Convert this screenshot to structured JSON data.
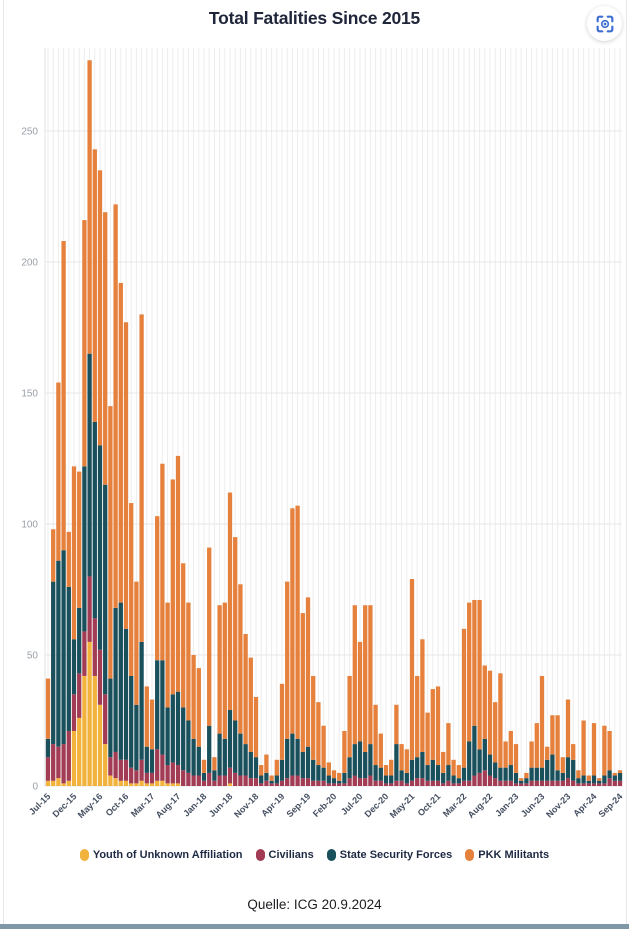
{
  "title": "Total Fatalities Since 2015",
  "source": "Quelle: ICG 20.9.2024",
  "toolbar": {
    "focus_button_icon": "focus-scan-icon",
    "focus_button_color": "#3e6fd0"
  },
  "colors": {
    "background": "#ffffff",
    "grid": "#ececec",
    "axis_text": "#9aa0a8",
    "tick_text": "#454e60",
    "title_text": "#20263a",
    "legend_text": "#1e2a44",
    "accent_blue": "#3e6fd0",
    "bottom_band": "#7e98a8"
  },
  "chart_data": {
    "type": "bar",
    "stacked": true,
    "title": "Total Fatalities Since 2015",
    "xlabel": "",
    "ylabel": "",
    "ylim": [
      0,
      285
    ],
    "yticks": [
      0,
      50,
      100,
      150,
      200,
      250
    ],
    "grid": true,
    "legend_position": "bottom",
    "x_tick_labels": [
      "Jul-15",
      "Dec-15",
      "May-16",
      "Oct-16",
      "Mar-17",
      "Aug-17",
      "Jan-18",
      "Jun-18",
      "Nov-18",
      "Apr-19",
      "Sep-19",
      "Feb-20",
      "Jul-20",
      "Dec-20",
      "May-21",
      "Oct-21",
      "Mar-22",
      "Aug-22",
      "Jan-23",
      "Jun-23",
      "Nov-23",
      "Apr-24",
      "Sep-24"
    ],
    "categories": [
      "Jul-15",
      "Aug-15",
      "Sep-15",
      "Oct-15",
      "Nov-15",
      "Dec-15",
      "Jan-16",
      "Feb-16",
      "Mar-16",
      "Apr-16",
      "May-16",
      "Jun-16",
      "Jul-16",
      "Aug-16",
      "Sep-16",
      "Oct-16",
      "Nov-16",
      "Dec-16",
      "Jan-17",
      "Feb-17",
      "Mar-17",
      "Apr-17",
      "May-17",
      "Jun-17",
      "Jul-17",
      "Aug-17",
      "Sep-17",
      "Oct-17",
      "Nov-17",
      "Dec-17",
      "Jan-18",
      "Feb-18",
      "Mar-18",
      "Apr-18",
      "May-18",
      "Jun-18",
      "Jul-18",
      "Aug-18",
      "Sep-18",
      "Oct-18",
      "Nov-18",
      "Dec-18",
      "Jan-19",
      "Feb-19",
      "Mar-19",
      "Apr-19",
      "May-19",
      "Jun-19",
      "Jul-19",
      "Aug-19",
      "Sep-19",
      "Oct-19",
      "Nov-19",
      "Dec-19",
      "Jan-20",
      "Feb-20",
      "Mar-20",
      "Apr-20",
      "May-20",
      "Jun-20",
      "Jul-20",
      "Aug-20",
      "Sep-20",
      "Oct-20",
      "Nov-20",
      "Dec-20",
      "Jan-21",
      "Feb-21",
      "Mar-21",
      "Apr-21",
      "May-21",
      "Jun-21",
      "Jul-21",
      "Aug-21",
      "Sep-21",
      "Oct-21",
      "Nov-21",
      "Dec-21",
      "Jan-22",
      "Feb-22",
      "Mar-22",
      "Apr-22",
      "May-22",
      "Jun-22",
      "Jul-22",
      "Aug-22",
      "Sep-22",
      "Oct-22",
      "Nov-22",
      "Dec-22",
      "Jan-23",
      "Feb-23",
      "Mar-23",
      "Apr-23",
      "May-23",
      "Jun-23",
      "Jul-23",
      "Aug-23",
      "Sep-23",
      "Oct-23",
      "Nov-23",
      "Dec-23",
      "Jan-24",
      "Feb-24",
      "Mar-24",
      "Apr-24",
      "May-24",
      "Jun-24",
      "Jul-24",
      "Aug-24",
      "Sep-24"
    ],
    "series": [
      {
        "name": "Youth of Unknown Affiliation",
        "color": "#F2B33D",
        "values": [
          2,
          2,
          3,
          1,
          2,
          21,
          26,
          42,
          55,
          42,
          31,
          16,
          4,
          3,
          2,
          2,
          1,
          1,
          2,
          1,
          1,
          2,
          2,
          1,
          1,
          1,
          0,
          0,
          0,
          0,
          0,
          0,
          0,
          0,
          0,
          1,
          0,
          0,
          0,
          0,
          0,
          0,
          0,
          0,
          0,
          0,
          0,
          0,
          0,
          0,
          0,
          0,
          0,
          0,
          0,
          0,
          0,
          0,
          0,
          0,
          0,
          0,
          0,
          0,
          0,
          0,
          0,
          0,
          0,
          0,
          0,
          0,
          0,
          0,
          0,
          0,
          0,
          0,
          0,
          0,
          0,
          0,
          0,
          0,
          0,
          0,
          0,
          0,
          0,
          0,
          0,
          0,
          0,
          0,
          0,
          0,
          0,
          0,
          0,
          0,
          0,
          0,
          0,
          0,
          0,
          0,
          0,
          0,
          0,
          0,
          0
        ]
      },
      {
        "name": "Civilians",
        "color": "#A23C55",
        "values": [
          9,
          14,
          12,
          15,
          19,
          14,
          17,
          17,
          25,
          22,
          21,
          19,
          7,
          10,
          8,
          8,
          6,
          5,
          8,
          4,
          4,
          12,
          10,
          7,
          8,
          7,
          6,
          5,
          4,
          4,
          2,
          5,
          2,
          4,
          4,
          6,
          5,
          4,
          4,
          3,
          3,
          1,
          2,
          1,
          1,
          2,
          3,
          4,
          4,
          3,
          3,
          2,
          2,
          2,
          1,
          1,
          1,
          1,
          3,
          4,
          3,
          3,
          4,
          2,
          2,
          1,
          1,
          2,
          2,
          1,
          2,
          3,
          3,
          2,
          2,
          2,
          1,
          2,
          1,
          1,
          2,
          2,
          4,
          5,
          6,
          4,
          3,
          2,
          2,
          2,
          1,
          1,
          1,
          2,
          2,
          2,
          2,
          2,
          2,
          2,
          3,
          2,
          1,
          1,
          1,
          1,
          1,
          1,
          3,
          2,
          2
        ]
      },
      {
        "name": "State Security Forces",
        "color": "#1A505C",
        "values": [
          7,
          62,
          71,
          74,
          55,
          21,
          25,
          63,
          85,
          75,
          78,
          80,
          30,
          55,
          60,
          50,
          35,
          25,
          45,
          10,
          9,
          34,
          36,
          22,
          26,
          28,
          24,
          20,
          14,
          11,
          3,
          18,
          4,
          16,
          14,
          22,
          20,
          16,
          12,
          10,
          8,
          3,
          3,
          1,
          3,
          8,
          15,
          16,
          14,
          10,
          12,
          8,
          6,
          5,
          3,
          2,
          1,
          4,
          8,
          12,
          14,
          10,
          12,
          6,
          5,
          3,
          3,
          14,
          4,
          4,
          8,
          8,
          10,
          6,
          8,
          6,
          4,
          6,
          3,
          2,
          5,
          15,
          19,
          9,
          12,
          8,
          6,
          5,
          5,
          6,
          4,
          1,
          2,
          5,
          5,
          5,
          8,
          10,
          4,
          3,
          8,
          8,
          2,
          3,
          1,
          3,
          1,
          3,
          3,
          2,
          3
        ]
      },
      {
        "name": "PKK Militants",
        "color": "#E5813C",
        "values": [
          23,
          20,
          68,
          118,
          21,
          66,
          52,
          94,
          112,
          104,
          105,
          104,
          104,
          154,
          122,
          117,
          66,
          47,
          125,
          23,
          19,
          55,
          75,
          40,
          82,
          90,
          55,
          45,
          32,
          30,
          5,
          68,
          5,
          49,
          52,
          83,
          70,
          57,
          42,
          36,
          23,
          4,
          7,
          2,
          6,
          29,
          60,
          86,
          89,
          53,
          57,
          32,
          24,
          16,
          5,
          3,
          3,
          16,
          31,
          53,
          38,
          56,
          53,
          23,
          13,
          4,
          6,
          15,
          10,
          9,
          69,
          31,
          43,
          20,
          27,
          30,
          8,
          16,
          6,
          5,
          53,
          53,
          48,
          57,
          28,
          32,
          23,
          36,
          10,
          13,
          11,
          1,
          2,
          10,
          17,
          35,
          5,
          15,
          21,
          6,
          22,
          6,
          3,
          21,
          2,
          20,
          1,
          19,
          15,
          1,
          1
        ]
      }
    ]
  }
}
